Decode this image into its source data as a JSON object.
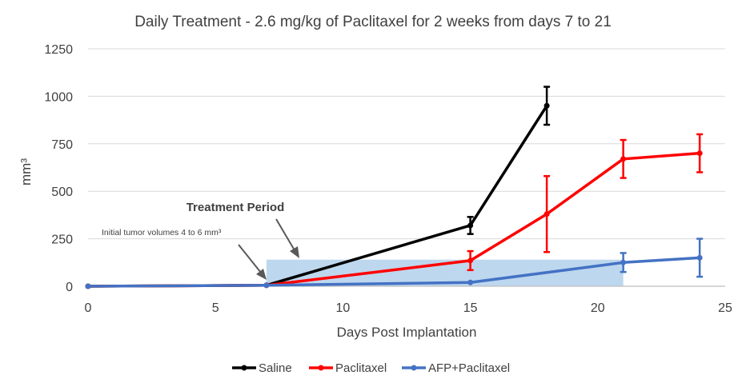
{
  "chart_data": {
    "type": "line",
    "title": "Daily Treatment - 2.6 mg/kg of Paclitaxel for 2 weeks from days 7 to 21",
    "xlabel": "Days Post Implantation",
    "ylabel": "mm³",
    "xlim": [
      0,
      25
    ],
    "ylim": [
      0,
      1250
    ],
    "x_ticks": [
      "0",
      "5",
      "10",
      "15",
      "20",
      "25"
    ],
    "y_ticks": [
      "0",
      "250",
      "500",
      "750",
      "1000",
      "1250"
    ],
    "grid": "horizontal",
    "legend": "bottom",
    "series": [
      {
        "name": "Saline",
        "color": "#000000",
        "x": [
          0,
          7,
          15,
          18
        ],
        "y": [
          0,
          5,
          320,
          950
        ],
        "error": [
          0,
          0,
          45,
          100
        ]
      },
      {
        "name": "Paclitaxel",
        "color": "#ff0000",
        "x": [
          0,
          7,
          15,
          18,
          21,
          24
        ],
        "y": [
          0,
          5,
          135,
          380,
          670,
          700
        ],
        "error": [
          0,
          0,
          50,
          200,
          100,
          100
        ]
      },
      {
        "name": "AFP+Paclitaxel",
        "color": "#4472c4",
        "x": [
          0,
          7,
          15,
          21,
          24
        ],
        "y": [
          0,
          5,
          20,
          125,
          150
        ],
        "error": [
          0,
          0,
          0,
          50,
          100
        ]
      }
    ],
    "shaded_region": {
      "x": [
        7,
        21
      ],
      "y": [
        0,
        140
      ],
      "color": "#bdd7ee"
    },
    "annotations": {
      "treatment": "Treatment Period",
      "initial": "Initial tumor volumes 4 to 6 mm³"
    }
  }
}
